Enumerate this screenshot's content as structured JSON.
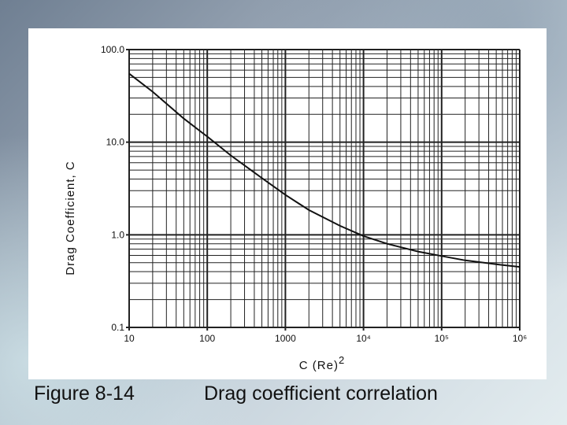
{
  "caption": {
    "label": "Figure 8-14",
    "text": "Drag coefficient correlation"
  },
  "chart_data": {
    "type": "line",
    "title": "",
    "xlabel": "C (Re)",
    "xlabel_superscript": "2",
    "ylabel": "Drag Coefficient, C",
    "x_scale": "log",
    "y_scale": "log",
    "xlim": [
      10,
      1000000
    ],
    "ylim": [
      0.1,
      100
    ],
    "grid": true,
    "legend": "none",
    "x_tick_labels": [
      "10",
      "100",
      "1000",
      "10⁴",
      "10⁵",
      "10⁶"
    ],
    "y_tick_labels": [
      "100.0",
      "10.0",
      "1.0",
      "0.1"
    ],
    "series": [
      {
        "x": [
          10,
          20,
          50,
          100,
          200,
          500,
          1000,
          2000,
          5000,
          10000,
          20000,
          50000,
          100000,
          200000,
          500000,
          1000000
        ],
        "y": [
          55,
          35,
          18,
          11.5,
          7.2,
          4.1,
          2.7,
          1.85,
          1.25,
          0.97,
          0.8,
          0.66,
          0.59,
          0.53,
          0.48,
          0.45
        ]
      }
    ],
    "colors": {
      "line": "#111111",
      "grid": "#222222"
    }
  }
}
